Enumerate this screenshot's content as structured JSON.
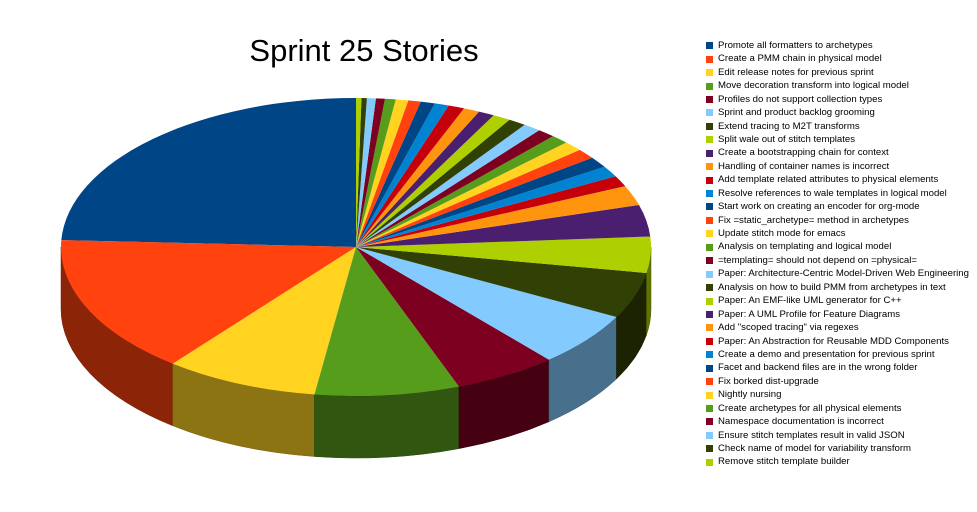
{
  "chart_data": {
    "type": "pie",
    "title": "Sprint 25 Stories",
    "three_d": true,
    "legend_position": "right",
    "series": [
      {
        "name": "Promote all formatters to archetypes",
        "value": 24.8,
        "color": "#004586"
      },
      {
        "name": "Create a PMM chain in physical model",
        "value": 15.4,
        "color": "#ff420e"
      },
      {
        "name": "Edit release notes for previous sprint",
        "value": 8.6,
        "color": "#ffd320"
      },
      {
        "name": "Move decoration transform into logical model",
        "value": 8.1,
        "color": "#579d1c"
      },
      {
        "name": "Profiles do not support collection types",
        "value": 5.8,
        "color": "#7e0021"
      },
      {
        "name": "Sprint and product backlog grooming",
        "value": 6.0,
        "color": "#83caff"
      },
      {
        "name": "Extend tracing to M2T transforms",
        "value": 5.1,
        "color": "#314004"
      },
      {
        "name": "Split wale out of stitch templates",
        "value": 4.0,
        "color": "#aecf00"
      },
      {
        "name": "Create a bootstrapping chain for context",
        "value": 3.5,
        "color": "#4b1f6f"
      },
      {
        "name": "Handling of container names is incorrect",
        "value": 2.2,
        "color": "#ff950e"
      },
      {
        "name": "Add template related attributes to physical elements",
        "value": 1.2,
        "color": "#c5000b"
      },
      {
        "name": "Resolve references to wale templates in logical model",
        "value": 1.2,
        "color": "#0084d1"
      },
      {
        "name": "Start work on creating an encoder for org-mode",
        "value": 1.2,
        "color": "#004586"
      },
      {
        "name": "Fix =static_archetype= method in archetypes",
        "value": 1.1,
        "color": "#ff420e"
      },
      {
        "name": "Update stitch mode for emacs",
        "value": 1.1,
        "color": "#ffd320"
      },
      {
        "name": "Analysis on templating and logical model",
        "value": 1.0,
        "color": "#579d1c"
      },
      {
        "name": "=templating= should not depend on =physical=",
        "value": 1.0,
        "color": "#7e0021"
      },
      {
        "name": "Paper: Architecture-Centric Model-Driven Web Engineering",
        "value": 1.0,
        "color": "#83caff"
      },
      {
        "name": "Analysis on how to build PMM from archetypes in text",
        "value": 1.0,
        "color": "#314004"
      },
      {
        "name": "Paper: An EMF-like UML generator for C++",
        "value": 1.0,
        "color": "#aecf00"
      },
      {
        "name": "Paper: A UML Profile for Feature Diagrams",
        "value": 0.9,
        "color": "#4b1f6f"
      },
      {
        "name": "Add \"scoped tracing\" via regexes",
        "value": 0.9,
        "color": "#ff950e"
      },
      {
        "name": "Paper: An Abstraction for Reusable MDD Components",
        "value": 0.9,
        "color": "#c5000b"
      },
      {
        "name": "Create a demo and presentation for previous sprint",
        "value": 0.8,
        "color": "#0084d1"
      },
      {
        "name": "Facet and backend files are in the wrong folder",
        "value": 0.8,
        "color": "#004586"
      },
      {
        "name": "Fix borked dist-upgrade",
        "value": 0.7,
        "color": "#ff420e"
      },
      {
        "name": "Nightly nursing",
        "value": 0.7,
        "color": "#ffd320"
      },
      {
        "name": "Create archetypes for all physical elements",
        "value": 0.6,
        "color": "#579d1c"
      },
      {
        "name": "Namespace documentation is incorrect",
        "value": 0.5,
        "color": "#7e0021"
      },
      {
        "name": "Ensure stitch templates result in valid JSON",
        "value": 0.5,
        "color": "#83caff"
      },
      {
        "name": "Check name of model for variability transform",
        "value": 0.3,
        "color": "#314004"
      },
      {
        "name": "Remove stitch template builder",
        "value": 0.3,
        "color": "#aecf00"
      }
    ]
  }
}
